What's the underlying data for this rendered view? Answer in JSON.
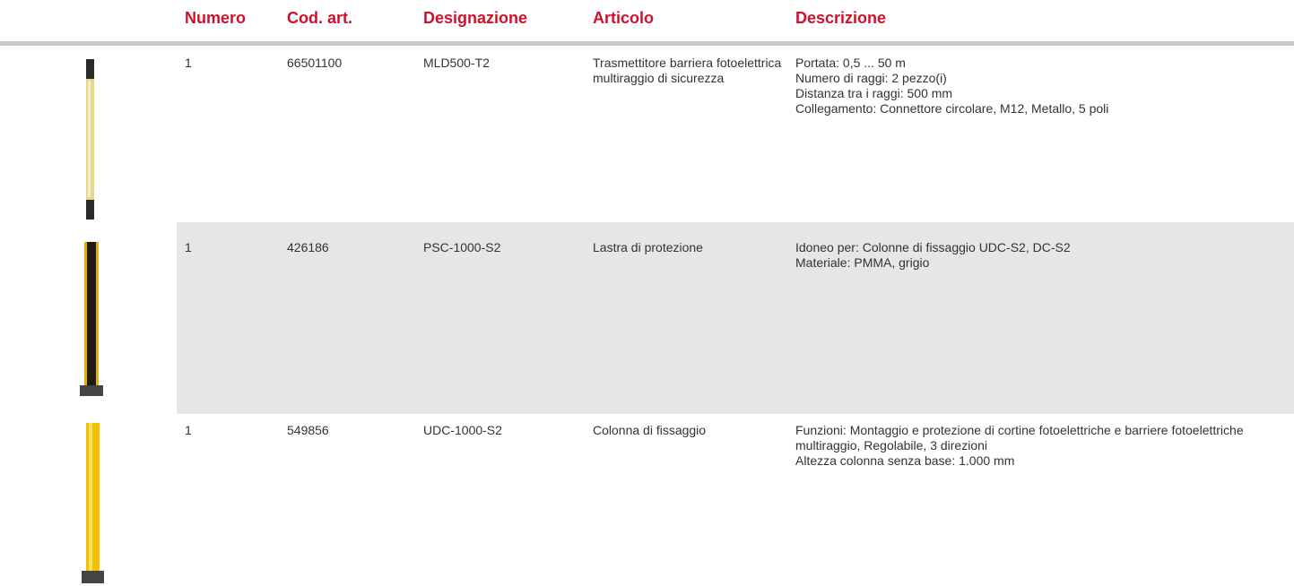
{
  "table": {
    "headers": [
      "Numero",
      "Cod. art.",
      "Designazione",
      "Articolo",
      "Descrizione"
    ],
    "rows": [
      {
        "number": "1",
        "code": "66501100",
        "designation": "MLD500-T2",
        "article": "Trasmettitore barriera fotoelettrica multiraggio di sicurezza",
        "description": [
          "Portata: 0,5 ... 50 m",
          "Numero di raggi: 2 pezzo(i)",
          "Distanza tra i raggi: 500 mm",
          "Collegamento: Connettore circolare, M12, Metallo, 5 poli"
        ]
      },
      {
        "number": "1",
        "code": "426186",
        "designation": "PSC-1000-S2",
        "article": "Lastra di protezione",
        "description": [
          "Idoneo per: Colonne di fissaggio UDC-S2, DC-S2",
          "Materiale: PMMA, grigio"
        ]
      },
      {
        "number": "1",
        "code": "549856",
        "designation": "UDC-1000-S2",
        "article": "Colonna di fissaggio",
        "description": [
          "Funzioni: Montaggio e protezione di cortine fotoelettriche e barriere fotoelettriche multiraggio, Regolabile, 3 direzioni",
          "Altezza colonna senza base: 1.000 mm"
        ]
      }
    ]
  }
}
